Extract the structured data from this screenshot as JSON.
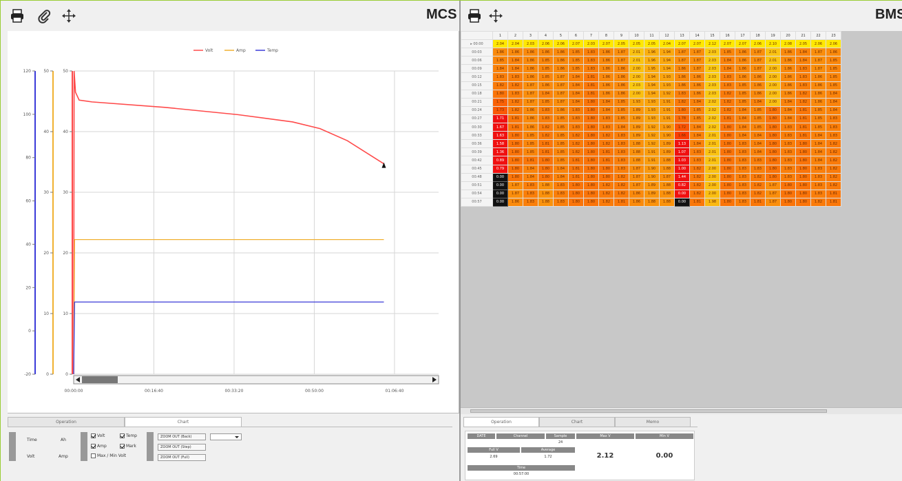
{
  "left_toolbar": {
    "title": "MCS",
    "icons": [
      "print-icon",
      "attach-icon",
      "move-icon"
    ]
  },
  "right_toolbar": {
    "title": "BMS",
    "icons": [
      "print-icon",
      "move-icon"
    ]
  },
  "colors": {
    "volt": "#ff4a4a",
    "amp": "#f0b030",
    "temp": "#3a3ad8",
    "dark_cell": "#111111"
  },
  "chart_data": {
    "type": "line",
    "legend": [
      {
        "name": "Volt",
        "color": "#ff4a4a"
      },
      {
        "name": "Amp",
        "color": "#f0b030"
      },
      {
        "name": "Temp",
        "color": "#3a3ad8"
      }
    ],
    "legend_position": "top-center",
    "grid": true,
    "x_ticks": [
      "00:00:00",
      "00:16:40",
      "00:33:20",
      "00:50:00",
      "01:06:40"
    ],
    "x_range": [
      0,
      4000
    ],
    "axes": [
      {
        "name": "temp_axis",
        "range": [
          -20,
          120
        ],
        "ticks": [
          "120",
          "100",
          "80",
          "60",
          "40",
          "20",
          "0",
          "-20"
        ]
      },
      {
        "name": "amp_axis",
        "range": [
          0,
          50
        ],
        "ticks": [
          "50",
          "40",
          "30",
          "20",
          "10",
          "0"
        ]
      },
      {
        "name": "volt_axis",
        "range": [
          0,
          50
        ],
        "ticks": [
          "50",
          "40",
          "30",
          "20",
          "10",
          "0"
        ]
      }
    ],
    "series": [
      {
        "name": "Volt",
        "x": [
          0,
          5,
          20,
          60,
          200,
          1000,
          1800,
          2400,
          2700,
          3000,
          3400
        ],
        "y": [
          0,
          50,
          46.5,
          45.2,
          44.9,
          44.0,
          42.8,
          41.6,
          40.5,
          38.5,
          34.7
        ]
      },
      {
        "name": "Amp",
        "x": [
          0,
          10,
          3400
        ],
        "y": [
          0,
          22.2,
          22.2
        ]
      },
      {
        "name": "Temp",
        "x": [
          0,
          10,
          3400
        ],
        "y": [
          0,
          11.9,
          11.9
        ]
      }
    ]
  },
  "bms_grid": {
    "columns": [
      "1",
      "2",
      "3",
      "4",
      "5",
      "6",
      "7",
      "8",
      "9",
      "10",
      "11",
      "12",
      "13",
      "14",
      "15",
      "16",
      "17",
      "18",
      "19",
      "20",
      "21",
      "22",
      "23"
    ],
    "rows": [
      {
        "time": "00:00",
        "values": [
          "2.04",
          "2.04",
          "2.03",
          "2.06",
          "2.06",
          "2.07",
          "2.03",
          "2.07",
          "2.05",
          "2.05",
          "2.05",
          "2.04",
          "2.07",
          "2.07",
          "2.12",
          "2.07",
          "2.07",
          "2.06",
          "2.10",
          "2.08",
          "2.05",
          "2.06",
          "2.06"
        ]
      },
      {
        "time": "00:03",
        "values": [
          "1.86",
          "1.86",
          "1.86",
          "1.86",
          "1.86",
          "1.85",
          "1.83",
          "1.86",
          "1.87",
          "2.01",
          "1.96",
          "1.94",
          "1.87",
          "1.87",
          "2.03",
          "1.85",
          "1.86",
          "1.87",
          "2.01",
          "1.86",
          "1.84",
          "1.87",
          "1.86"
        ]
      },
      {
        "time": "00:06",
        "values": [
          "1.85",
          "1.84",
          "1.86",
          "1.85",
          "1.86",
          "1.85",
          "1.83",
          "1.86",
          "1.87",
          "2.01",
          "1.96",
          "1.94",
          "1.87",
          "1.87",
          "2.03",
          "1.84",
          "1.86",
          "1.87",
          "2.01",
          "1.86",
          "1.84",
          "1.87",
          "1.85"
        ]
      },
      {
        "time": "00:09",
        "values": [
          "1.84",
          "1.84",
          "1.86",
          "1.85",
          "1.86",
          "1.85",
          "1.83",
          "1.86",
          "1.86",
          "2.00",
          "1.95",
          "1.94",
          "1.86",
          "1.87",
          "2.03",
          "1.84",
          "1.86",
          "1.87",
          "2.00",
          "1.86",
          "1.83",
          "1.87",
          "1.85"
        ]
      },
      {
        "time": "00:12",
        "values": [
          "1.83",
          "1.83",
          "1.86",
          "1.85",
          "1.87",
          "1.84",
          "1.81",
          "1.86",
          "1.86",
          "2.00",
          "1.94",
          "1.93",
          "1.86",
          "1.86",
          "2.03",
          "1.83",
          "1.86",
          "1.86",
          "2.00",
          "1.86",
          "1.83",
          "1.86",
          "1.85"
        ]
      },
      {
        "time": "00:15",
        "values": [
          "1.82",
          "1.82",
          "1.87",
          "1.86",
          "1.87",
          "1.84",
          "1.81",
          "1.86",
          "1.86",
          "2.03",
          "1.94",
          "1.93",
          "1.86",
          "1.86",
          "2.03",
          "1.83",
          "1.85",
          "1.86",
          "2.00",
          "1.86",
          "1.83",
          "1.86",
          "1.85"
        ]
      },
      {
        "time": "00:18",
        "values": [
          "1.80",
          "1.83",
          "1.87",
          "1.84",
          "1.87",
          "1.84",
          "1.81",
          "1.86",
          "1.86",
          "2.00",
          "1.94",
          "1.92",
          "1.83",
          "1.86",
          "2.03",
          "1.82",
          "1.85",
          "1.86",
          "2.00",
          "1.86",
          "1.82",
          "1.86",
          "1.84"
        ]
      },
      {
        "time": "00:21",
        "values": [
          "1.75",
          "1.82",
          "1.87",
          "1.85",
          "1.87",
          "1.84",
          "1.80",
          "1.84",
          "1.85",
          "1.93",
          "1.93",
          "1.91",
          "1.82",
          "1.84",
          "2.02",
          "1.82",
          "1.85",
          "1.84",
          "2.00",
          "1.84",
          "1.82",
          "1.86",
          "1.84"
        ]
      },
      {
        "time": "00:24",
        "values": [
          "1.73",
          "1.82",
          "1.86",
          "1.83",
          "1.86",
          "1.83",
          "1.80",
          "1.84",
          "1.85",
          "1.89",
          "1.93",
          "1.91",
          "1.80",
          "1.85",
          "2.02",
          "1.82",
          "1.84",
          "1.85",
          "1.80",
          "1.84",
          "1.81",
          "1.85",
          "1.84"
        ]
      },
      {
        "time": "00:27",
        "values": [
          "1.71",
          "1.81",
          "1.86",
          "1.83",
          "1.85",
          "1.83",
          "1.80",
          "1.83",
          "1.85",
          "1.89",
          "1.93",
          "1.91",
          "1.78",
          "1.85",
          "2.02",
          "1.81",
          "1.84",
          "1.85",
          "1.80",
          "1.84",
          "1.81",
          "1.85",
          "1.83"
        ]
      },
      {
        "time": "00:30",
        "values": [
          "1.67",
          "1.81",
          "1.86",
          "1.82",
          "1.85",
          "1.83",
          "1.80",
          "1.83",
          "1.84",
          "1.89",
          "1.92",
          "1.90",
          "1.72",
          "1.84",
          "2.02",
          "1.80",
          "1.84",
          "1.85",
          "1.80",
          "1.83",
          "1.81",
          "1.85",
          "1.83"
        ]
      },
      {
        "time": "00:33",
        "values": [
          "1.63",
          "1.80",
          "1.85",
          "1.82",
          "1.85",
          "1.82",
          "1.80",
          "1.82",
          "1.83",
          "1.89",
          "1.92",
          "1.90",
          "1.66",
          "1.84",
          "2.01",
          "1.80",
          "1.84",
          "1.84",
          "1.80",
          "1.83",
          "1.81",
          "1.84",
          "1.83"
        ]
      },
      {
        "time": "00:36",
        "values": [
          "1.58",
          "1.80",
          "1.85",
          "1.81",
          "1.85",
          "1.82",
          "1.80",
          "1.82",
          "1.83",
          "1.88",
          "1.92",
          "1.89",
          "1.13",
          "1.84",
          "2.01",
          "1.80",
          "1.83",
          "1.84",
          "1.80",
          "1.83",
          "1.80",
          "1.84",
          "1.82"
        ]
      },
      {
        "time": "00:39",
        "values": [
          "1.36",
          "1.80",
          "1.85",
          "1.81",
          "1.85",
          "1.82",
          "1.80",
          "1.81",
          "1.83",
          "1.88",
          "1.91",
          "1.89",
          "1.07",
          "1.83",
          "2.01",
          "1.80",
          "1.83",
          "1.84",
          "1.80",
          "1.83",
          "1.80",
          "1.84",
          "1.82"
        ]
      },
      {
        "time": "00:42",
        "values": [
          "0.89",
          "1.80",
          "1.81",
          "1.80",
          "1.85",
          "1.81",
          "1.80",
          "1.81",
          "1.83",
          "1.88",
          "1.91",
          "1.88",
          "1.03",
          "1.83",
          "2.01",
          "1.80",
          "1.83",
          "1.83",
          "1.80",
          "1.83",
          "1.80",
          "1.84",
          "1.82"
        ]
      },
      {
        "time": "00:45",
        "values": [
          "0.79",
          "1.80",
          "1.84",
          "1.80",
          "1.84",
          "1.81",
          "1.80",
          "1.80",
          "1.83",
          "1.87",
          "1.90",
          "1.88",
          "1.00",
          "1.82",
          "2.00",
          "1.80",
          "1.83",
          "1.83",
          "1.80",
          "1.83",
          "1.80",
          "1.83",
          "1.82"
        ]
      },
      {
        "time": "00:48",
        "values": [
          "0.00",
          "1.80",
          "1.84",
          "1.80",
          "1.84",
          "1.81",
          "1.80",
          "1.80",
          "1.82",
          "1.87",
          "1.90",
          "1.87",
          "1.44",
          "1.82",
          "2.00",
          "1.80",
          "1.83",
          "1.82",
          "1.80",
          "1.83",
          "1.80",
          "1.83",
          "1.82"
        ]
      },
      {
        "time": "00:51",
        "values": [
          "0.00",
          "1.87",
          "1.83",
          "1.88",
          "1.83",
          "1.80",
          "1.80",
          "1.82",
          "1.82",
          "1.87",
          "1.89",
          "1.88",
          "0.82",
          "1.82",
          "2.00",
          "1.80",
          "1.83",
          "1.82",
          "1.87",
          "1.80",
          "1.80",
          "1.83",
          "1.82"
        ]
      },
      {
        "time": "00:54",
        "values": [
          "0.00",
          "1.87",
          "1.83",
          "1.88",
          "1.83",
          "1.80",
          "1.80",
          "1.82",
          "1.82",
          "1.86",
          "1.89",
          "1.88",
          "0.00",
          "1.82",
          "2.00",
          "1.80",
          "1.83",
          "1.82",
          "1.87",
          "1.80",
          "1.80",
          "1.83",
          "1.81"
        ]
      },
      {
        "time": "00:57",
        "values": [
          "0.00",
          "1.86",
          "1.83",
          "1.88",
          "1.83",
          "1.80",
          "1.80",
          "1.82",
          "1.81",
          "1.86",
          "1.88",
          "1.88",
          "0.00",
          "1.81",
          "1.98",
          "1.80",
          "1.83",
          "1.81",
          "1.87",
          "1.80",
          "1.80",
          "1.82",
          "1.81"
        ]
      }
    ],
    "dark_cells": [
      [
        16,
        0
      ],
      [
        17,
        0
      ],
      [
        18,
        0
      ],
      [
        19,
        0
      ],
      [
        19,
        12
      ]
    ]
  },
  "left_bottom": {
    "tabs": [
      "Operation",
      "Chart"
    ],
    "active_tab": "Chart",
    "group1_labels": [
      "Time",
      "Ah",
      "Volt",
      "Amp"
    ],
    "checks": [
      {
        "label": "Volt",
        "checked": true
      },
      {
        "label": "Temp",
        "checked": true
      },
      {
        "label": "Amp",
        "checked": true
      },
      {
        "label": "Mark",
        "checked": true
      },
      {
        "label": "Max / Min Volt",
        "checked": false
      }
    ],
    "zoom_buttons": [
      "ZOOM OUT (Back)",
      "ZOOM OUT (Step)",
      "ZOOM OUT (Full)"
    ],
    "dropdown": ""
  },
  "right_bottom": {
    "tabs": [
      "Operation",
      "Chart",
      "Memo"
    ],
    "active_tab": "Operation",
    "headers": [
      "DATE",
      "Channel",
      "Sample",
      "Max V",
      "Min V"
    ],
    "sample_value": "24",
    "sub_headers": [
      "Full V",
      "Average"
    ],
    "full_v": "2.69",
    "average": "1.72",
    "max_v": "2.12",
    "min_v": "0.00",
    "time_label": "Time",
    "time_value": "00:57:00"
  }
}
